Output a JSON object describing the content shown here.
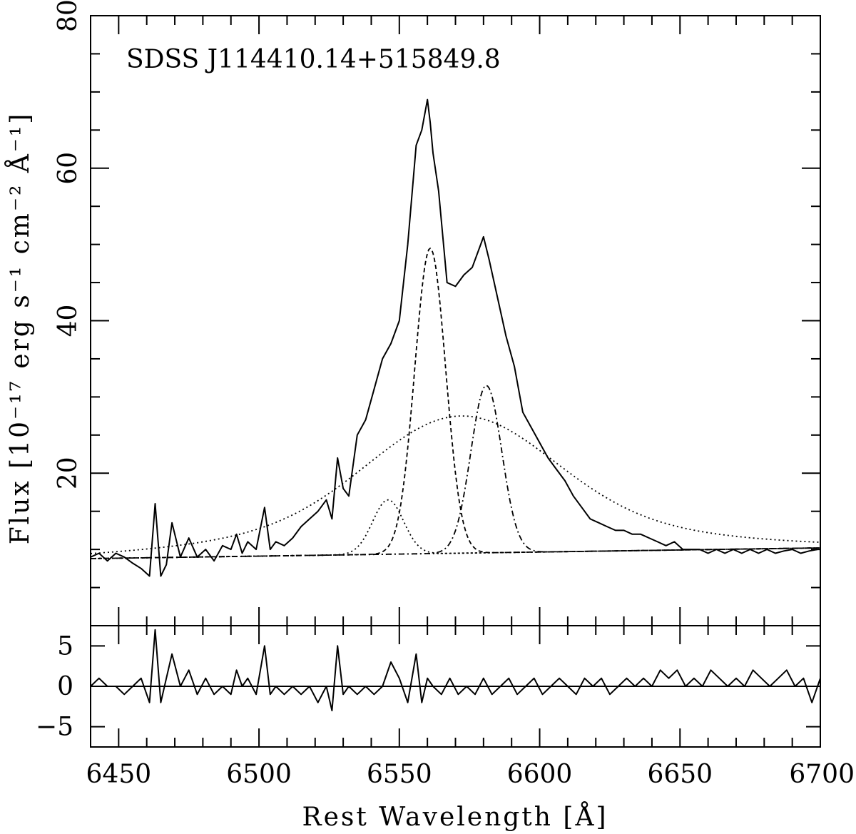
{
  "chart_data": [
    {
      "type": "line",
      "panel": "main",
      "annotation": "SDSS J114410.14+515849.8",
      "ylabel": "Flux [10⁻¹⁷ erg s⁻¹ cm⁻² Å⁻¹]",
      "xlim": [
        6440,
        6700
      ],
      "ylim": [
        0,
        80
      ],
      "y_ticks": [
        "20",
        "40",
        "60",
        "80"
      ],
      "series": [
        {
          "style": "solid",
          "x": [
            6440,
            6443,
            6446,
            6449,
            6452,
            6455,
            6458,
            6461,
            6463,
            6465,
            6467,
            6469,
            6472,
            6475,
            6478,
            6481,
            6484,
            6487,
            6490,
            6492,
            6494,
            6496,
            6499,
            6502,
            6504,
            6506,
            6509,
            6512,
            6515,
            6518,
            6521,
            6524,
            6526,
            6528,
            6530,
            6532,
            6535,
            6538,
            6541,
            6544,
            6547,
            6550,
            6553,
            6556,
            6558,
            6560,
            6561,
            6562,
            6564,
            6567,
            6570,
            6573,
            6576,
            6579,
            6580,
            6582,
            6585,
            6588,
            6591,
            6594,
            6597,
            6600,
            6603,
            6606,
            6609,
            6612,
            6615,
            6618,
            6621,
            6624,
            6627,
            6630,
            6633,
            6636,
            6639,
            6642,
            6645,
            6648,
            6651,
            6654,
            6657,
            6660,
            6663,
            6666,
            6669,
            6672,
            6675,
            6678,
            6681,
            6684,
            6687,
            6690,
            6693,
            6696,
            6699
          ],
          "y": [
            9,
            9.5,
            8.5,
            9.5,
            9,
            8.2,
            7.5,
            6.5,
            16,
            6.5,
            8,
            13.5,
            9,
            11.5,
            9,
            10,
            8.5,
            10.5,
            10,
            12,
            9.5,
            11,
            10,
            15.5,
            10,
            11,
            10.5,
            11.5,
            13,
            14,
            15,
            16.5,
            14,
            22,
            18,
            17,
            25,
            27,
            31,
            35,
            37,
            40,
            50,
            63,
            65,
            69,
            66,
            62,
            57,
            45,
            44.5,
            46,
            47,
            50,
            51,
            48,
            43,
            38,
            34,
            28,
            26,
            24,
            22,
            20.5,
            19,
            17,
            15.5,
            14,
            13.5,
            13,
            12.5,
            12.5,
            12,
            12,
            11.5,
            11,
            10.5,
            11,
            10,
            10,
            10,
            9.5,
            10,
            9.5,
            10,
            9.5,
            10,
            9.5,
            10,
            9.5,
            9.8,
            10,
            9.5,
            9.8,
            10
          ]
        },
        {
          "style": "dotted",
          "component": "broad",
          "center": 6572,
          "peak": 27.5,
          "width": 32,
          "tail": 14
        },
        {
          "style": "dashed",
          "component": "narrow",
          "center": 6561,
          "peak": 49.5,
          "width": 5.5
        },
        {
          "style": "dash-dot",
          "component": "narrow",
          "center": 6581,
          "peak": 31.5,
          "width": 5.5
        },
        {
          "style": "dotted",
          "component": "narrow",
          "center": 6546,
          "peak": 16.5,
          "width": 5.5
        },
        {
          "style": "dotted",
          "component": "continuum",
          "x": [
            6440,
            6700
          ],
          "y": [
            8.8,
            10.2
          ]
        }
      ]
    },
    {
      "type": "line",
      "panel": "residuals",
      "xlabel": "Rest Wavelength [Å]",
      "xlim": [
        6440,
        6700
      ],
      "ylim": [
        -7.5,
        7.5
      ],
      "x_ticks": [
        "6450",
        "6500",
        "6550",
        "6600",
        "6650",
        "6700"
      ],
      "y_ticks": [
        "5",
        "0",
        "−5"
      ],
      "series": [
        {
          "style": "solid",
          "name": "residual",
          "x": [
            6440,
            6443,
            6446,
            6449,
            6452,
            6455,
            6458,
            6461,
            6463,
            6465,
            6467,
            6469,
            6472,
            6475,
            6478,
            6481,
            6484,
            6487,
            6490,
            6492,
            6494,
            6496,
            6499,
            6502,
            6504,
            6506,
            6509,
            6512,
            6515,
            6518,
            6521,
            6524,
            6526,
            6528,
            6530,
            6532,
            6535,
            6538,
            6541,
            6544,
            6547,
            6550,
            6553,
            6556,
            6558,
            6560,
            6562,
            6565,
            6568,
            6571,
            6574,
            6577,
            6580,
            6583,
            6586,
            6589,
            6592,
            6595,
            6598,
            6601,
            6604,
            6607,
            6610,
            6613,
            6616,
            6619,
            6622,
            6625,
            6628,
            6631,
            6634,
            6637,
            6640,
            6643,
            6646,
            6649,
            6652,
            6655,
            6658,
            6661,
            6664,
            6667,
            6670,
            6673,
            6676,
            6679,
            6682,
            6685,
            6688,
            6691,
            6694,
            6697,
            6700
          ],
          "y": [
            0,
            1,
            0,
            0,
            -1,
            0,
            1,
            -2,
            7,
            -2,
            1,
            4,
            0,
            2,
            -1,
            1,
            -1,
            0,
            -1,
            2,
            0,
            1,
            -1,
            5,
            -1,
            0,
            -1,
            0,
            -1,
            0,
            -2,
            0,
            -3,
            5,
            -1,
            0,
            -1,
            0,
            -1,
            0,
            3,
            1,
            -2,
            4,
            -2,
            1,
            0,
            -1,
            1,
            -1,
            0,
            -1,
            1,
            -1,
            0,
            1,
            -1,
            0,
            1,
            -1,
            0,
            1,
            0,
            -1,
            1,
            0,
            1,
            -1,
            0,
            1,
            0,
            1,
            0,
            2,
            1,
            2,
            0,
            1,
            0,
            2,
            1,
            0,
            1,
            0,
            2,
            1,
            0,
            1,
            2,
            0,
            1,
            -2,
            1
          ]
        },
        {
          "style": "solid",
          "name": "zero",
          "x": [
            6440,
            6700
          ],
          "y": [
            0,
            0
          ]
        }
      ]
    }
  ]
}
